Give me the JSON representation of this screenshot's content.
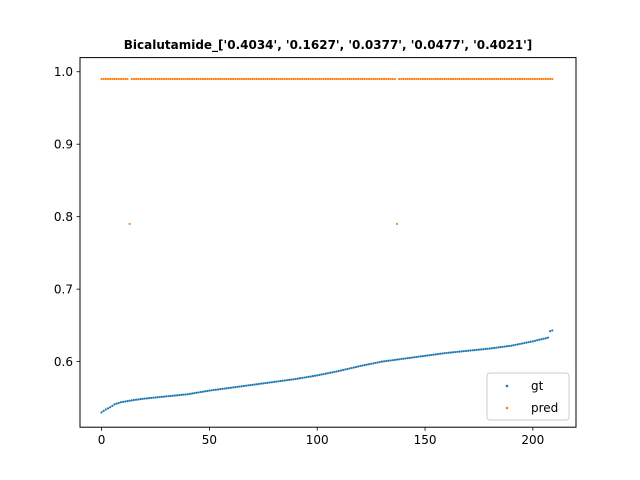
{
  "chart_data": {
    "type": "scatter",
    "title": "Bicalutamide_['0.4034', '0.1627', '0.0377', '0.0477', '0.4021']",
    "xlabel": "",
    "ylabel": "",
    "xlim": [
      -10,
      220
    ],
    "ylim": [
      0.5095,
      1.0195
    ],
    "xticks": [
      0,
      50,
      100,
      150,
      200
    ],
    "yticks": [
      0.6,
      0.7,
      0.8,
      0.9,
      1.0
    ],
    "xtick_labels": [
      "0",
      "50",
      "100",
      "150",
      "200"
    ],
    "ytick_labels": [
      "0.6",
      "0.7",
      "0.8",
      "0.9",
      "1.0"
    ],
    "grid": false,
    "legend_position": "lower-right",
    "n_points": 210,
    "series": [
      {
        "name": "gt",
        "color": "#1f77b4",
        "keypoints": [
          [
            0,
            0.53
          ],
          [
            1,
            0.532
          ],
          [
            2,
            0.534
          ],
          [
            4,
            0.537
          ],
          [
            6,
            0.541
          ],
          [
            9,
            0.544
          ],
          [
            15,
            0.547
          ],
          [
            20,
            0.549
          ],
          [
            30,
            0.552
          ],
          [
            40,
            0.555
          ],
          [
            50,
            0.56
          ],
          [
            60,
            0.564
          ],
          [
            70,
            0.568
          ],
          [
            80,
            0.572
          ],
          [
            90,
            0.576
          ],
          [
            100,
            0.581
          ],
          [
            110,
            0.587
          ],
          [
            120,
            0.594
          ],
          [
            130,
            0.6
          ],
          [
            140,
            0.604
          ],
          [
            150,
            0.608
          ],
          [
            160,
            0.612
          ],
          [
            170,
            0.615
          ],
          [
            180,
            0.618
          ],
          [
            190,
            0.622
          ],
          [
            200,
            0.628
          ],
          [
            207,
            0.633
          ],
          [
            208,
            0.642
          ],
          [
            209,
            0.643
          ]
        ]
      },
      {
        "name": "pred",
        "color": "#ff7f0e",
        "base_value": 0.99,
        "outliers": [
          [
            13,
            0.79
          ],
          [
            137,
            0.79
          ]
        ]
      }
    ]
  }
}
